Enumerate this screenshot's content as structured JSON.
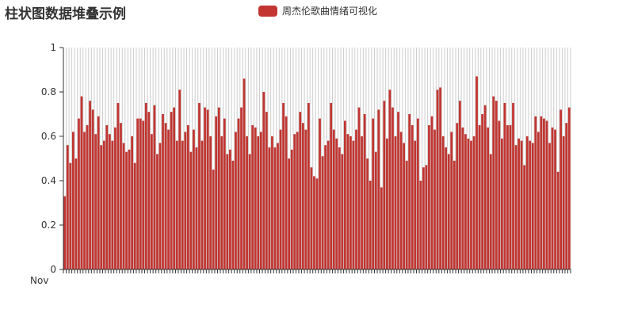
{
  "chart_data": {
    "type": "bar",
    "title": "柱状图数据堆叠示例",
    "legend": {
      "position": "top-center"
    },
    "series": [
      {
        "name": "周杰伦歌曲情绪可视化",
        "color": "#c23531"
      }
    ],
    "ylim": [
      0,
      1
    ],
    "yticks": [
      "0",
      "0.2",
      "0.4",
      "0.6",
      "0.8",
      "1"
    ],
    "x_grid": true,
    "first_category": "Nov",
    "values": [
      0.33,
      0.56,
      0.48,
      0.62,
      0.5,
      0.68,
      0.78,
      0.62,
      0.65,
      0.76,
      0.72,
      0.61,
      0.69,
      0.56,
      0.58,
      0.65,
      0.61,
      0.58,
      0.64,
      0.75,
      0.66,
      0.57,
      0.53,
      0.54,
      0.6,
      0.48,
      0.68,
      0.68,
      0.67,
      0.75,
      0.71,
      0.61,
      0.74,
      0.52,
      0.57,
      0.7,
      0.66,
      0.63,
      0.71,
      0.73,
      0.58,
      0.81,
      0.58,
      0.62,
      0.65,
      0.53,
      0.63,
      0.55,
      0.75,
      0.58,
      0.73,
      0.72,
      0.6,
      0.45,
      0.69,
      0.73,
      0.6,
      0.68,
      0.52,
      0.54,
      0.49,
      0.62,
      0.68,
      0.73,
      0.86,
      0.6,
      0.52,
      0.65,
      0.64,
      0.6,
      0.62,
      0.8,
      0.71,
      0.55,
      0.6,
      0.55,
      0.57,
      0.63,
      0.75,
      0.69,
      0.5,
      0.54,
      0.61,
      0.62,
      0.71,
      0.66,
      0.63,
      0.75,
      0.46,
      0.42,
      0.41,
      0.68,
      0.51,
      0.56,
      0.58,
      0.75,
      0.63,
      0.59,
      0.55,
      0.52,
      0.67,
      0.61,
      0.6,
      0.58,
      0.63,
      0.73,
      0.6,
      0.7,
      0.5,
      0.4,
      0.68,
      0.53,
      0.72,
      0.37,
      0.76,
      0.59,
      0.81,
      0.73,
      0.6,
      0.71,
      0.62,
      0.57,
      0.49,
      0.7,
      0.65,
      0.58,
      0.68,
      0.4,
      0.46,
      0.47,
      0.65,
      0.69,
      0.63,
      0.81,
      0.82,
      0.6,
      0.55,
      0.52,
      0.62,
      0.49,
      0.66,
      0.76,
      0.64,
      0.61,
      0.59,
      0.58,
      0.6,
      0.87,
      0.65,
      0.7,
      0.74,
      0.64,
      0.52,
      0.78,
      0.76,
      0.67,
      0.59,
      0.75,
      0.65,
      0.65,
      0.75,
      0.56,
      0.59,
      0.58,
      0.47,
      0.6,
      0.58,
      0.57,
      0.69,
      0.62,
      0.69,
      0.68,
      0.67,
      0.57,
      0.64,
      0.63,
      0.44,
      0.72,
      0.6,
      0.66,
      0.73
    ]
  }
}
